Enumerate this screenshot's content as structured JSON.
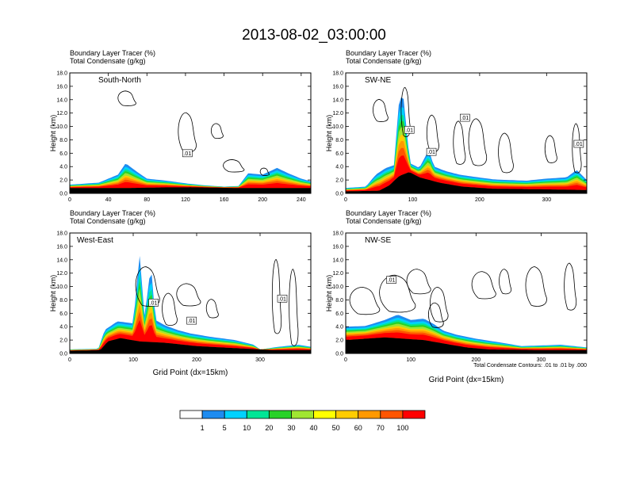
{
  "title": "2013-08-02_03:00:00",
  "colors": {
    "scale": [
      "#ffffff",
      "#1e8cf0",
      "#00d2ff",
      "#00e696",
      "#28d228",
      "#a0e632",
      "#ffff00",
      "#ffcc00",
      "#ff9900",
      "#ff5500",
      "#ff0000"
    ],
    "contour": "#000000",
    "terrain": "#000000"
  },
  "chart_data": [
    {
      "type": "area",
      "panel_label": "South-North",
      "title_line1": "Boundary Layer Tracer   (%)",
      "title_line2": "Total Condensate   (g/kg)",
      "xlabel": "",
      "ylabel": "Height (km)",
      "xlim": [
        0,
        250
      ],
      "ylim": [
        0,
        18
      ],
      "xticks": [
        "0",
        "40",
        "80",
        "120",
        "160",
        "200",
        "240"
      ],
      "xtick_values": [
        0,
        40,
        80,
        120,
        160,
        200,
        240
      ],
      "yticks": [
        "0.0",
        "2.0",
        "4.0",
        "6.0",
        "8.0",
        "10.0",
        "12.0",
        "14.0",
        "16.0",
        "18.0"
      ],
      "contour_labels": [
        {
          "text": ".01",
          "x": 122,
          "y": 6.0
        }
      ],
      "marker_x": 125,
      "tracer_top": [
        [
          0,
          1.3
        ],
        [
          30,
          1.6
        ],
        [
          50,
          2.8
        ],
        [
          58,
          4.5
        ],
        [
          68,
          3.4
        ],
        [
          80,
          2.2
        ],
        [
          100,
          1.9
        ],
        [
          120,
          1.5
        ],
        [
          140,
          1.2
        ],
        [
          160,
          1.0
        ],
        [
          175,
          1.1
        ],
        [
          185,
          3.0
        ],
        [
          200,
          2.8
        ],
        [
          215,
          3.8
        ],
        [
          225,
          3.1
        ],
        [
          240,
          2.2
        ],
        [
          250,
          1.8
        ]
      ],
      "terrain": [
        [
          0,
          0.8
        ],
        [
          60,
          0.8
        ],
        [
          100,
          0.9
        ],
        [
          130,
          0.9
        ],
        [
          175,
          0.8
        ],
        [
          250,
          0.8
        ]
      ]
    },
    {
      "type": "area",
      "panel_label": "SW-NE",
      "title_line1": "Boundary Layer Tracer   (%)",
      "title_line2": "Total Condensate   (g/kg)",
      "xlabel": "",
      "ylabel": "Height (km)",
      "xlim": [
        0,
        360
      ],
      "ylim": [
        0,
        18
      ],
      "xticks": [
        "0",
        "100",
        "200",
        "300"
      ],
      "xtick_values": [
        0,
        100,
        200,
        300
      ],
      "yticks": [
        "0.0",
        "2.0",
        "4.0",
        "6.0",
        "8.0",
        "10.0",
        "12.0",
        "14.0",
        "16.0",
        "18.0"
      ],
      "contour_labels": [
        {
          "text": ".01",
          "x": 95,
          "y": 9.5
        },
        {
          "text": ".01",
          "x": 128,
          "y": 6.2
        },
        {
          "text": ".01",
          "x": 178,
          "y": 11.3
        },
        {
          "text": ".01",
          "x": 348,
          "y": 7.4
        }
      ],
      "marker_x": 175,
      "tracer_top": [
        [
          0,
          0.8
        ],
        [
          30,
          1.0
        ],
        [
          45,
          2.8
        ],
        [
          60,
          3.8
        ],
        [
          72,
          4.2
        ],
        [
          80,
          14.2
        ],
        [
          86,
          14.5
        ],
        [
          96,
          4.5
        ],
        [
          110,
          3.8
        ],
        [
          124,
          6.5
        ],
        [
          132,
          4.0
        ],
        [
          150,
          3.3
        ],
        [
          170,
          2.8
        ],
        [
          190,
          2.5
        ],
        [
          220,
          2.1
        ],
        [
          240,
          2.0
        ],
        [
          270,
          1.9
        ],
        [
          300,
          2.2
        ],
        [
          330,
          2.4
        ],
        [
          345,
          3.5
        ],
        [
          360,
          2.0
        ]
      ],
      "terrain": [
        [
          0,
          0.3
        ],
        [
          50,
          0.4
        ],
        [
          65,
          1.2
        ],
        [
          80,
          2.6
        ],
        [
          95,
          3.2
        ],
        [
          110,
          2.4
        ],
        [
          140,
          1.6
        ],
        [
          175,
          1.0
        ],
        [
          220,
          0.7
        ],
        [
          300,
          0.6
        ],
        [
          360,
          0.5
        ]
      ]
    },
    {
      "type": "area",
      "panel_label": "West-East",
      "title_line1": "Boundary Layer Tracer   (%)",
      "title_line2": "Total Condensate   (g/kg)",
      "xlabel": "Grid Point (dx=15km)",
      "ylabel": "Height (km)",
      "xlim": [
        0,
        380
      ],
      "ylim": [
        0,
        18
      ],
      "xticks": [
        "0",
        "100",
        "200",
        "300"
      ],
      "xtick_values": [
        0,
        100,
        200,
        300
      ],
      "yticks": [
        "0.0",
        "2.0",
        "4.0",
        "6.0",
        "8.0",
        "10.0",
        "12.0",
        "14.0",
        "16.0",
        "18.0"
      ],
      "contour_labels": [
        {
          "text": ".01",
          "x": 132,
          "y": 7.6
        },
        {
          "text": ".01",
          "x": 192,
          "y": 4.9
        },
        {
          "text": ".01",
          "x": 335,
          "y": 8.2
        }
      ],
      "marker_x": 192,
      "tracer_top": [
        [
          0,
          0.6
        ],
        [
          45,
          0.7
        ],
        [
          55,
          3.5
        ],
        [
          75,
          4.8
        ],
        [
          100,
          4.5
        ],
        [
          110,
          14.8
        ],
        [
          118,
          5.5
        ],
        [
          128,
          13.2
        ],
        [
          135,
          5.0
        ],
        [
          150,
          4.2
        ],
        [
          170,
          3.5
        ],
        [
          190,
          3.0
        ],
        [
          220,
          2.5
        ],
        [
          260,
          2.0
        ],
        [
          290,
          1.3
        ],
        [
          300,
          0.6
        ],
        [
          330,
          1.0
        ],
        [
          360,
          1.3
        ],
        [
          380,
          1.0
        ]
      ],
      "terrain": [
        [
          0,
          0.4
        ],
        [
          48,
          0.5
        ],
        [
          60,
          1.8
        ],
        [
          80,
          2.3
        ],
        [
          110,
          1.8
        ],
        [
          150,
          1.6
        ],
        [
          200,
          1.1
        ],
        [
          260,
          0.8
        ],
        [
          320,
          0.5
        ],
        [
          380,
          0.5
        ]
      ]
    },
    {
      "type": "area",
      "panel_label": "NW-SE",
      "title_line1": "Boundary Layer Tracer   (%)",
      "title_line2": "Total Condensate   (g/kg)",
      "xlabel": "Grid Point (dx=15km)",
      "ylabel": "Height (km)",
      "xlim": [
        0,
        370
      ],
      "ylim": [
        0,
        18
      ],
      "xticks": [
        "0",
        "100",
        "200",
        "300"
      ],
      "xtick_values": [
        0,
        100,
        200,
        300
      ],
      "yticks": [
        "0.0",
        "2.0",
        "4.0",
        "6.0",
        "8.0",
        "10.0",
        "12.0",
        "14.0",
        "16.0",
        "18.0"
      ],
      "contour_labels": [
        {
          "text": ".01",
          "x": 70,
          "y": 11.0
        }
      ],
      "marker_x": 185,
      "tracer_top": [
        [
          0,
          4.0
        ],
        [
          30,
          4.1
        ],
        [
          60,
          5.0
        ],
        [
          80,
          5.8
        ],
        [
          100,
          5.0
        ],
        [
          120,
          5.2
        ],
        [
          135,
          4.4
        ],
        [
          150,
          3.4
        ],
        [
          170,
          2.8
        ],
        [
          200,
          2.2
        ],
        [
          240,
          1.6
        ],
        [
          270,
          1.1
        ],
        [
          300,
          1.2
        ],
        [
          330,
          1.3
        ],
        [
          360,
          1.0
        ],
        [
          370,
          0.9
        ]
      ],
      "terrain": [
        [
          0,
          2.0
        ],
        [
          30,
          2.2
        ],
        [
          60,
          2.4
        ],
        [
          90,
          2.2
        ],
        [
          120,
          2.0
        ],
        [
          150,
          1.5
        ],
        [
          185,
          0.9
        ],
        [
          220,
          0.6
        ],
        [
          300,
          0.5
        ],
        [
          370,
          0.5
        ]
      ]
    }
  ],
  "contour_note": "Total Condensate Contours: .01 to .01 by .000",
  "colorbar": {
    "labels": [
      "1",
      "5",
      "10",
      "20",
      "30",
      "40",
      "50",
      "60",
      "70",
      "100"
    ]
  }
}
